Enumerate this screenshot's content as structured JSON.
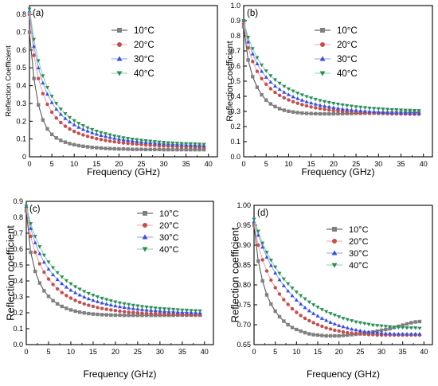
{
  "chart_data": [
    {
      "type": "scatter",
      "panel_label": "(a)",
      "xlabel": "Frequency (GHz)",
      "ylabel": "Reflection Coefficient",
      "xlim": [
        0,
        42
      ],
      "ylim": [
        0,
        0.85
      ],
      "xticks": [
        0,
        5,
        10,
        15,
        20,
        25,
        30,
        35,
        40
      ],
      "yticks": [
        0,
        0.1,
        0.2,
        0.3,
        0.4,
        0.5,
        0.6,
        0.7,
        0.8
      ],
      "ytick_labels": [
        "0",
        "0.1",
        "0.2",
        "0.3",
        "0.4",
        "0.5",
        "0.6",
        "0.7",
        "0.8"
      ],
      "legend_position": "top-right",
      "x": [
        0,
        1,
        2,
        3,
        4,
        5,
        6,
        7,
        8,
        9,
        10,
        11,
        12,
        13,
        14,
        15,
        16,
        17,
        18,
        19,
        20,
        21,
        22,
        23,
        24,
        25,
        26,
        27,
        28,
        29,
        30,
        31,
        32,
        33,
        34,
        35,
        36,
        37,
        38,
        39
      ],
      "series": [
        {
          "name": "10°C",
          "values": [
            0.7,
            0.44,
            0.292,
            0.207,
            0.157,
            0.126,
            0.106,
            0.092,
            0.082,
            0.074,
            0.068,
            0.063,
            0.059,
            0.056,
            0.053,
            0.051,
            0.049,
            0.047,
            0.046,
            0.045,
            0.044,
            0.044,
            0.043,
            0.042,
            0.042,
            0.042,
            0.041,
            0.041,
            0.041,
            0.041,
            0.04,
            0.04,
            0.04,
            0.04,
            0.04,
            0.04,
            0.04,
            0.04,
            0.04,
            0.04
          ]
        },
        {
          "name": "20°C",
          "values": [
            0.8,
            0.57,
            0.44,
            0.355,
            0.295,
            0.251,
            0.218,
            0.192,
            0.172,
            0.156,
            0.143,
            0.132,
            0.123,
            0.115,
            0.108,
            0.102,
            0.097,
            0.092,
            0.088,
            0.084,
            0.081,
            0.078,
            0.075,
            0.073,
            0.071,
            0.069,
            0.067,
            0.065,
            0.064,
            0.062,
            0.061,
            0.06,
            0.059,
            0.058,
            0.057,
            0.056,
            0.056,
            0.055,
            0.054,
            0.054
          ]
        },
        {
          "name": "30°C",
          "values": [
            0.82,
            0.62,
            0.5,
            0.415,
            0.352,
            0.305,
            0.268,
            0.239,
            0.215,
            0.196,
            0.18,
            0.166,
            0.154,
            0.144,
            0.135,
            0.127,
            0.12,
            0.114,
            0.109,
            0.104,
            0.099,
            0.095,
            0.092,
            0.089,
            0.086,
            0.083,
            0.081,
            0.079,
            0.077,
            0.075,
            0.073,
            0.072,
            0.07,
            0.069,
            0.068,
            0.067,
            0.066,
            0.065,
            0.064,
            0.064
          ]
        },
        {
          "name": "40°C",
          "values": [
            0.83,
            0.66,
            0.54,
            0.455,
            0.39,
            0.34,
            0.3,
            0.268,
            0.242,
            0.221,
            0.203,
            0.188,
            0.175,
            0.163,
            0.153,
            0.144,
            0.136,
            0.129,
            0.123,
            0.117,
            0.112,
            0.107,
            0.103,
            0.099,
            0.096,
            0.093,
            0.09,
            0.088,
            0.085,
            0.083,
            0.081,
            0.079,
            0.078,
            0.076,
            0.075,
            0.074,
            0.073,
            0.072,
            0.071,
            0.07
          ]
        }
      ]
    },
    {
      "type": "scatter",
      "panel_label": "(b)",
      "xlabel": "Frequency (GHz)",
      "ylabel": "Reflection coefficient",
      "xlim": [
        0,
        42
      ],
      "ylim": [
        0,
        1.0
      ],
      "xticks": [
        0,
        5,
        10,
        15,
        20,
        25,
        30,
        35,
        40
      ],
      "yticks": [
        0,
        0.1,
        0.2,
        0.3,
        0.4,
        0.5,
        0.6,
        0.7,
        0.8,
        0.9,
        1.0
      ],
      "ytick_labels": [
        "0.0",
        "0.1",
        "0.2",
        "0.3",
        "0.4",
        "0.5",
        "0.6",
        "0.7",
        "0.8",
        "0.9",
        "1.0"
      ],
      "legend_position": "top-right",
      "x": [
        0,
        1,
        2,
        3,
        4,
        5,
        6,
        7,
        8,
        9,
        10,
        11,
        12,
        13,
        14,
        15,
        16,
        17,
        18,
        19,
        20,
        21,
        22,
        23,
        24,
        25,
        26,
        27,
        28,
        29,
        30,
        31,
        32,
        33,
        34,
        35,
        36,
        37,
        38,
        39
      ],
      "series": [
        {
          "name": "10°C",
          "values": [
            0.86,
            0.64,
            0.53,
            0.46,
            0.41,
            0.375,
            0.35,
            0.332,
            0.318,
            0.308,
            0.301,
            0.296,
            0.292,
            0.289,
            0.287,
            0.286,
            0.285,
            0.284,
            0.284,
            0.284,
            0.284,
            0.285,
            0.285,
            0.286,
            0.286,
            0.287,
            0.287,
            0.288,
            0.288,
            0.289,
            0.289,
            0.29,
            0.29,
            0.29,
            0.291,
            0.291,
            0.291,
            0.292,
            0.292,
            0.292
          ]
        },
        {
          "name": "20°C",
          "values": [
            0.88,
            0.72,
            0.63,
            0.565,
            0.517,
            0.48,
            0.45,
            0.426,
            0.406,
            0.39,
            0.376,
            0.364,
            0.354,
            0.345,
            0.337,
            0.33,
            0.324,
            0.319,
            0.314,
            0.31,
            0.306,
            0.303,
            0.3,
            0.298,
            0.296,
            0.294,
            0.292,
            0.29,
            0.289,
            0.288,
            0.287,
            0.286,
            0.285,
            0.284,
            0.284,
            0.283,
            0.283,
            0.282,
            0.282,
            0.282
          ]
        },
        {
          "name": "30°C",
          "values": [
            0.9,
            0.76,
            0.68,
            0.615,
            0.565,
            0.526,
            0.494,
            0.468,
            0.446,
            0.427,
            0.411,
            0.397,
            0.385,
            0.374,
            0.364,
            0.356,
            0.348,
            0.341,
            0.335,
            0.33,
            0.325,
            0.32,
            0.316,
            0.313,
            0.31,
            0.307,
            0.304,
            0.302,
            0.3,
            0.298,
            0.296,
            0.295,
            0.293,
            0.292,
            0.291,
            0.29,
            0.289,
            0.288,
            0.287,
            0.287
          ]
        },
        {
          "name": "40°C",
          "values": [
            0.9,
            0.79,
            0.715,
            0.655,
            0.607,
            0.568,
            0.536,
            0.509,
            0.486,
            0.466,
            0.449,
            0.434,
            0.421,
            0.409,
            0.398,
            0.389,
            0.38,
            0.372,
            0.365,
            0.359,
            0.353,
            0.348,
            0.343,
            0.339,
            0.335,
            0.331,
            0.328,
            0.325,
            0.322,
            0.32,
            0.318,
            0.316,
            0.314,
            0.312,
            0.311,
            0.309,
            0.308,
            0.307,
            0.306,
            0.305
          ]
        }
      ]
    },
    {
      "type": "scatter",
      "panel_label": "(c)",
      "xlabel": "Frequency (GHz)",
      "ylabel": "Reflection coefficient",
      "xlim": [
        0,
        42
      ],
      "ylim": [
        0,
        0.9
      ],
      "xticks": [
        0,
        5,
        10,
        15,
        20,
        25,
        30,
        35,
        40
      ],
      "yticks": [
        0,
        0.1,
        0.2,
        0.3,
        0.4,
        0.5,
        0.6,
        0.7,
        0.8,
        0.9
      ],
      "ytick_labels": [
        "0.0",
        "0.1",
        "0.2",
        "0.3",
        "0.4",
        "0.5",
        "0.6",
        "0.7",
        "0.8",
        "0.9"
      ],
      "legend_position": "top-right",
      "x": [
        0,
        1,
        2,
        3,
        4,
        5,
        6,
        7,
        8,
        9,
        10,
        11,
        12,
        13,
        14,
        15,
        16,
        17,
        18,
        19,
        20,
        21,
        22,
        23,
        24,
        25,
        26,
        27,
        28,
        29,
        30,
        31,
        32,
        33,
        34,
        35,
        36,
        37,
        38,
        39
      ],
      "series": [
        {
          "name": "10°C",
          "values": [
            0.84,
            0.58,
            0.46,
            0.387,
            0.338,
            0.303,
            0.276,
            0.256,
            0.24,
            0.228,
            0.218,
            0.21,
            0.204,
            0.199,
            0.195,
            0.192,
            0.19,
            0.188,
            0.187,
            0.186,
            0.185,
            0.185,
            0.184,
            0.184,
            0.184,
            0.184,
            0.184,
            0.184,
            0.184,
            0.184,
            0.184,
            0.184,
            0.184,
            0.184,
            0.185,
            0.185,
            0.185,
            0.185,
            0.185,
            0.185
          ]
        },
        {
          "name": "20°C",
          "values": [
            0.86,
            0.68,
            0.58,
            0.508,
            0.455,
            0.412,
            0.378,
            0.35,
            0.327,
            0.308,
            0.292,
            0.278,
            0.266,
            0.256,
            0.247,
            0.24,
            0.233,
            0.227,
            0.222,
            0.218,
            0.214,
            0.21,
            0.207,
            0.204,
            0.202,
            0.2,
            0.198,
            0.196,
            0.195,
            0.194,
            0.193,
            0.192,
            0.191,
            0.19,
            0.189,
            0.189,
            0.188,
            0.188,
            0.188,
            0.187
          ]
        },
        {
          "name": "30°C",
          "values": [
            0.87,
            0.73,
            0.64,
            0.572,
            0.518,
            0.475,
            0.439,
            0.409,
            0.383,
            0.361,
            0.342,
            0.326,
            0.312,
            0.299,
            0.288,
            0.278,
            0.27,
            0.262,
            0.255,
            0.249,
            0.243,
            0.238,
            0.234,
            0.23,
            0.226,
            0.223,
            0.22,
            0.217,
            0.215,
            0.213,
            0.211,
            0.209,
            0.207,
            0.206,
            0.204,
            0.203,
            0.202,
            0.201,
            0.2,
            0.199
          ]
        },
        {
          "name": "40°C",
          "values": [
            0.87,
            0.76,
            0.68,
            0.615,
            0.562,
            0.519,
            0.483,
            0.452,
            0.425,
            0.402,
            0.382,
            0.364,
            0.348,
            0.334,
            0.321,
            0.31,
            0.3,
            0.291,
            0.283,
            0.275,
            0.268,
            0.262,
            0.257,
            0.252,
            0.247,
            0.243,
            0.239,
            0.236,
            0.233,
            0.23,
            0.227,
            0.225,
            0.223,
            0.221,
            0.219,
            0.217,
            0.216,
            0.214,
            0.213,
            0.212
          ]
        }
      ]
    },
    {
      "type": "scatter",
      "panel_label": "(d)",
      "xlabel": "Frequency (GHz)",
      "ylabel": "Reflection coefficient",
      "xlim": [
        0,
        42
      ],
      "ylim": [
        0.65,
        1.0
      ],
      "xticks": [
        0,
        5,
        10,
        15,
        20,
        25,
        30,
        35,
        40
      ],
      "yticks": [
        0.65,
        0.7,
        0.75,
        0.8,
        0.85,
        0.9,
        0.95,
        1.0
      ],
      "ytick_labels": [
        "0.65",
        "0.70",
        "0.75",
        "0.80",
        "0.85",
        "0.90",
        "0.95",
        "1.00"
      ],
      "legend_position": "center-right",
      "x": [
        0,
        1,
        2,
        3,
        4,
        5,
        6,
        7,
        8,
        9,
        10,
        11,
        12,
        13,
        14,
        15,
        16,
        17,
        18,
        19,
        20,
        21,
        22,
        23,
        24,
        25,
        26,
        27,
        28,
        29,
        30,
        31,
        32,
        33,
        34,
        35,
        36,
        37,
        38,
        39
      ],
      "series": [
        {
          "name": "10°C",
          "values": [
            0.95,
            0.86,
            0.81,
            0.775,
            0.752,
            0.734,
            0.72,
            0.709,
            0.7,
            0.693,
            0.688,
            0.684,
            0.68,
            0.677,
            0.675,
            0.674,
            0.673,
            0.672,
            0.672,
            0.672,
            0.672,
            0.673,
            0.674,
            0.675,
            0.676,
            0.677,
            0.678,
            0.68,
            0.682,
            0.684,
            0.686,
            0.688,
            0.69,
            0.693,
            0.696,
            0.699,
            0.702,
            0.705,
            0.707,
            0.708
          ]
        },
        {
          "name": "20°C",
          "values": [
            0.955,
            0.9,
            0.863,
            0.835,
            0.812,
            0.793,
            0.777,
            0.763,
            0.751,
            0.74,
            0.731,
            0.723,
            0.716,
            0.71,
            0.705,
            0.7,
            0.696,
            0.692,
            0.689,
            0.686,
            0.684,
            0.682,
            0.68,
            0.679,
            0.678,
            0.677,
            0.676,
            0.675,
            0.675,
            0.674,
            0.674,
            0.674,
            0.674,
            0.674,
            0.674,
            0.674,
            0.674,
            0.674,
            0.674,
            0.674
          ]
        },
        {
          "name": "30°C",
          "values": [
            0.96,
            0.925,
            0.895,
            0.87,
            0.849,
            0.83,
            0.813,
            0.798,
            0.785,
            0.773,
            0.762,
            0.752,
            0.743,
            0.735,
            0.728,
            0.722,
            0.716,
            0.711,
            0.706,
            0.702,
            0.698,
            0.695,
            0.692,
            0.689,
            0.687,
            0.685,
            0.683,
            0.682,
            0.681,
            0.68,
            0.679,
            0.678,
            0.678,
            0.677,
            0.677,
            0.677,
            0.677,
            0.677,
            0.677,
            0.677
          ]
        },
        {
          "name": "40°C",
          "values": [
            0.965,
            0.935,
            0.905,
            0.882,
            0.862,
            0.845,
            0.829,
            0.815,
            0.803,
            0.792,
            0.782,
            0.773,
            0.765,
            0.757,
            0.75,
            0.744,
            0.738,
            0.733,
            0.728,
            0.724,
            0.72,
            0.716,
            0.713,
            0.71,
            0.707,
            0.705,
            0.703,
            0.701,
            0.699,
            0.698,
            0.697,
            0.696,
            0.695,
            0.694,
            0.693,
            0.693,
            0.692,
            0.692,
            0.692,
            0.691
          ]
        }
      ]
    }
  ],
  "series_colors": [
    "#808080",
    "#c0504d",
    "#3a4fd8",
    "#2e8b57"
  ],
  "series_line_colors": [
    "#4a4a4a",
    "#e8a0a8",
    "#8fa0ee",
    "#88d0a8"
  ],
  "series_markers": [
    "square",
    "circle",
    "triangle-up",
    "triangle-down"
  ]
}
